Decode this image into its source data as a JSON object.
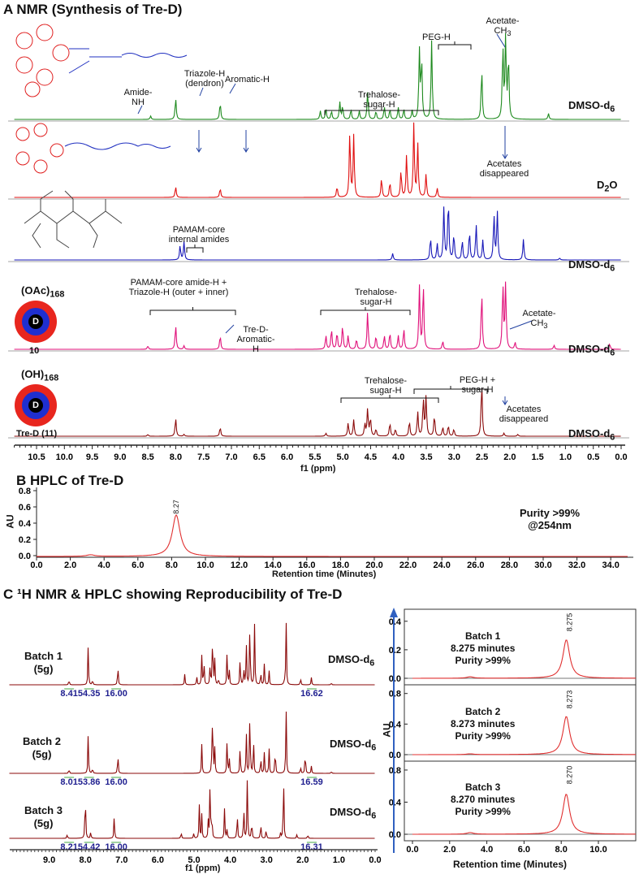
{
  "panel_a": {
    "title": "A  NMR (Synthesis of Tre-D)",
    "xlabel": "f1 (ppm)",
    "labels": {
      "amide_nh": "Amide-NH",
      "triazole": "Triazole-H (dendron)",
      "aromatic": "Aromatic-H",
      "treh1": "Trehalose-sugar-H",
      "peg": "PEG-H",
      "acetate1": "Acetate-CH3",
      "acet_dis1": "Acetates disappeared",
      "pamam_int": "PAMAM-core internal amides",
      "pamam_amide": "PAMAM-core amide-H + Triazole-H (outer + inner)",
      "tred_arom": "Tre-D-Aromatic-H",
      "treh2": "Trehalose-sugar-H",
      "acetate2": "Acetate-CH3",
      "treh3": "Trehalose-sugar-H",
      "peg_sugar": "PEG-H + sugar-H",
      "acet_dis2": "Acetates disappeared",
      "oac": "(OAc)168",
      "oh": "(OH)168",
      "cmp10": "10",
      "cmp11": "Tre-D (11)",
      "dcore": "D"
    },
    "solvents": [
      "DMSO-d6",
      "D2O",
      "DMSO-d6",
      "DMSO-d6",
      "DMSO-d6"
    ]
  },
  "panel_b": {
    "title": "B HPLC of Tre-D",
    "ylabel": "AU",
    "xlabel": "Retention time (Minutes)",
    "peak_label": "8.27",
    "purity": "Purity >99%",
    "wavelength": "@254nm"
  },
  "panel_c": {
    "title": "C ¹H NMR & HPLC showing Reproducibility of Tre-D",
    "nmr_xlabel": "f1 (ppm)",
    "hplc_xlabel": "Retention time (Minutes)",
    "hplc_ylabel": "AU",
    "batches": [
      {
        "name": "Batch 1",
        "mass": "(5g)",
        "solvent": "DMSO-d6",
        "integrals": [
          "8.41",
          "54.35",
          "16.00",
          "16.62"
        ],
        "time": "8.275 minutes",
        "purity": "Purity >99%",
        "peak_label": "8.275"
      },
      {
        "name": "Batch 2",
        "mass": "(5g)",
        "solvent": "DMSO-d6",
        "integrals": [
          "8.01",
          "53.86",
          "16.00",
          "16.59"
        ],
        "time": "8.273 minutes",
        "purity": "Purity >99%",
        "peak_label": "8.273"
      },
      {
        "name": "Batch 3",
        "mass": "(5g)",
        "solvent": "DMSO-d6",
        "integrals": [
          "8.21",
          "54.42",
          "16.00",
          "16.31"
        ],
        "time": "8.270 minutes",
        "purity": "Purity >99%",
        "peak_label": "8.270"
      }
    ]
  },
  "colors": {
    "green": "#1e8a1e",
    "red": "#e01010",
    "blue": "#1818b8",
    "pink": "#e0107a",
    "brown": "#8b0a0a",
    "hplc": "#e03030",
    "accent_blue": "#3060c0"
  },
  "chart_data": [
    {
      "type": "line",
      "name": "panel-a-nmr",
      "xlim": [
        10.9,
        0.0
      ],
      "xticks": [
        10.5,
        10.0,
        9.5,
        9.0,
        8.5,
        8.0,
        7.5,
        7.0,
        6.5,
        6.0,
        5.5,
        5.0,
        4.5,
        4.0,
        3.5,
        3.0,
        2.5,
        2.0,
        1.5,
        1.0,
        0.5,
        0.0
      ],
      "xlabel": "f1 (ppm)",
      "series": [
        {
          "solvent": "DMSO-d6",
          "color": "green",
          "peaks": [
            [
              8.45,
              0.04
            ],
            [
              8.0,
              0.25
            ],
            [
              7.2,
              0.2
            ],
            [
              5.4,
              0.1
            ],
            [
              5.3,
              0.12
            ],
            [
              5.2,
              0.1
            ],
            [
              5.05,
              0.2
            ],
            [
              5.0,
              0.15
            ],
            [
              4.85,
              0.12
            ],
            [
              4.7,
              0.1
            ],
            [
              4.55,
              0.33
            ],
            [
              4.4,
              0.1
            ],
            [
              4.25,
              0.15
            ],
            [
              4.15,
              0.12
            ],
            [
              4.0,
              0.14
            ],
            [
              3.9,
              0.12
            ],
            [
              3.75,
              0.1
            ],
            [
              3.62,
              0.8
            ],
            [
              3.58,
              0.7
            ],
            [
              3.4,
              0.92
            ],
            [
              2.5,
              0.6
            ],
            [
              2.12,
              0.85
            ],
            [
              2.07,
              0.95
            ],
            [
              2.02,
              0.75
            ],
            [
              1.3,
              0.07
            ]
          ]
        },
        {
          "solvent": "D2O",
          "color": "red",
          "peaks": [
            [
              8.0,
              0.14
            ],
            [
              7.2,
              0.12
            ],
            [
              5.1,
              0.14
            ],
            [
              4.87,
              0.85
            ],
            [
              4.8,
              0.8
            ],
            [
              4.3,
              0.25
            ],
            [
              4.15,
              0.2
            ],
            [
              3.95,
              0.35
            ],
            [
              3.85,
              0.55
            ],
            [
              3.72,
              0.95
            ],
            [
              3.65,
              0.7
            ],
            [
              3.5,
              0.3
            ],
            [
              3.3,
              0.12
            ]
          ]
        },
        {
          "solvent": "DMSO-d6",
          "color": "blue",
          "peaks": [
            [
              7.92,
              0.22
            ],
            [
              7.85,
              0.28
            ],
            [
              4.1,
              0.1
            ],
            [
              3.42,
              0.35
            ],
            [
              3.3,
              0.25
            ],
            [
              3.18,
              0.8
            ],
            [
              3.1,
              0.95
            ],
            [
              3.0,
              0.4
            ],
            [
              2.85,
              0.3
            ],
            [
              2.72,
              0.45
            ],
            [
              2.6,
              0.55
            ],
            [
              2.48,
              0.3
            ],
            [
              2.28,
              0.7
            ],
            [
              2.22,
              0.75
            ],
            [
              1.75,
              0.32
            ],
            [
              1.1,
              0.03
            ]
          ]
        },
        {
          "solvent": "DMSO-d6",
          "color": "pink",
          "peaks": [
            [
              8.5,
              0.05
            ],
            [
              8.0,
              0.35
            ],
            [
              7.85,
              0.05
            ],
            [
              7.2,
              0.2
            ],
            [
              5.3,
              0.2
            ],
            [
              5.2,
              0.3
            ],
            [
              5.1,
              0.25
            ],
            [
              5.0,
              0.35
            ],
            [
              4.9,
              0.2
            ],
            [
              4.75,
              0.15
            ],
            [
              4.55,
              0.55
            ],
            [
              4.4,
              0.2
            ],
            [
              4.25,
              0.2
            ],
            [
              4.15,
              0.25
            ],
            [
              4.0,
              0.2
            ],
            [
              3.9,
              0.3
            ],
            [
              3.62,
              0.92
            ],
            [
              3.55,
              0.95
            ],
            [
              3.2,
              0.12
            ],
            [
              2.5,
              0.85
            ],
            [
              2.12,
              0.95
            ],
            [
              2.07,
              0.95
            ],
            [
              1.9,
              0.1
            ],
            [
              1.2,
              0.06
            ],
            [
              0.2,
              0.08
            ]
          ]
        },
        {
          "solvent": "DMSO-d6",
          "color": "brown",
          "peaks": [
            [
              8.5,
              0.03
            ],
            [
              8.0,
              0.3
            ],
            [
              7.85,
              0.03
            ],
            [
              7.2,
              0.15
            ],
            [
              5.3,
              0.05
            ],
            [
              4.9,
              0.22
            ],
            [
              4.8,
              0.27
            ],
            [
              4.6,
              0.2
            ],
            [
              4.55,
              0.45
            ],
            [
              4.5,
              0.3
            ],
            [
              4.4,
              0.12
            ],
            [
              4.15,
              0.22
            ],
            [
              4.05,
              0.12
            ],
            [
              3.8,
              0.25
            ],
            [
              3.65,
              0.4
            ],
            [
              3.55,
              0.62
            ],
            [
              3.5,
              0.65
            ],
            [
              3.35,
              0.35
            ],
            [
              3.2,
              0.15
            ],
            [
              3.1,
              0.18
            ],
            [
              3.0,
              0.12
            ],
            [
              2.5,
              0.92
            ],
            [
              2.1,
              0.05
            ],
            [
              1.85,
              0.03
            ]
          ]
        }
      ]
    },
    {
      "type": "line",
      "name": "panel-b-hplc",
      "xlim": [
        0,
        35
      ],
      "ylim": [
        0,
        0.8
      ],
      "xticks": [
        0,
        2,
        4,
        6,
        8,
        10,
        12,
        14,
        16,
        18,
        20,
        22,
        24,
        26,
        28,
        30,
        32,
        34
      ],
      "yticks": [
        0.0,
        0.2,
        0.4,
        0.6,
        0.8
      ],
      "xlabel": "Retention time (Minutes)",
      "ylabel": "AU",
      "peaks": [
        [
          3.2,
          0.02
        ],
        [
          8.27,
          0.51
        ]
      ]
    },
    {
      "type": "line",
      "name": "panel-c-nmr",
      "xlim": [
        10.1,
        0.0
      ],
      "xticks": [
        9.0,
        8.0,
        7.0,
        6.0,
        5.0,
        4.0,
        3.0,
        2.0,
        1.0,
        0.0
      ],
      "xlabel": "f1 (ppm)",
      "series": [
        {
          "batch": "Batch 1",
          "peaks": [
            [
              8.45,
              0.08
            ],
            [
              7.92,
              0.55
            ],
            [
              7.8,
              0.08
            ],
            [
              7.1,
              0.3
            ],
            [
              5.25,
              0.15
            ],
            [
              4.92,
              0.12
            ],
            [
              4.78,
              0.4
            ],
            [
              4.72,
              0.35
            ],
            [
              4.55,
              0.3
            ],
            [
              4.48,
              0.85
            ],
            [
              4.42,
              0.35
            ],
            [
              4.32,
              0.1
            ],
            [
              4.08,
              0.5
            ],
            [
              4.02,
              0.2
            ],
            [
              3.72,
              0.4
            ],
            [
              3.62,
              0.25
            ],
            [
              3.55,
              0.6
            ],
            [
              3.45,
              0.95
            ],
            [
              3.32,
              0.85
            ],
            [
              3.15,
              0.2
            ],
            [
              3.05,
              0.3
            ],
            [
              2.92,
              0.2
            ],
            [
              2.5,
              0.05
            ],
            [
              2.45,
              0.95
            ],
            [
              2.05,
              0.1
            ],
            [
              1.75,
              0.1
            ],
            [
              1.2,
              0.03
            ]
          ]
        },
        {
          "batch": "Batch 2",
          "peaks": [
            [
              8.45,
              0.07
            ],
            [
              7.92,
              0.55
            ],
            [
              7.8,
              0.08
            ],
            [
              7.1,
              0.3
            ],
            [
              4.78,
              0.4
            ],
            [
              4.5,
              0.25
            ],
            [
              4.48,
              0.9
            ],
            [
              4.42,
              0.35
            ],
            [
              4.08,
              0.5
            ],
            [
              4.02,
              0.2
            ],
            [
              3.72,
              0.4
            ],
            [
              3.55,
              0.6
            ],
            [
              3.45,
              0.95
            ],
            [
              3.35,
              0.5
            ],
            [
              3.15,
              0.25
            ],
            [
              3.05,
              0.3
            ],
            [
              2.92,
              0.35
            ],
            [
              2.75,
              0.4
            ],
            [
              2.45,
              0.95
            ],
            [
              2.05,
              0.1
            ],
            [
              1.92,
              0.35
            ],
            [
              1.75,
              0.1
            ],
            [
              1.2,
              0.03
            ]
          ]
        },
        {
          "batch": "Batch 3",
          "peaks": [
            [
              8.5,
              0.06
            ],
            [
              8.0,
              0.8
            ],
            [
              7.85,
              0.1
            ],
            [
              7.2,
              0.35
            ],
            [
              5.35,
              0.1
            ],
            [
              5.0,
              0.08
            ],
            [
              4.85,
              0.5
            ],
            [
              4.78,
              0.35
            ],
            [
              4.6,
              0.25
            ],
            [
              4.55,
              0.95
            ],
            [
              4.5,
              0.35
            ],
            [
              4.15,
              0.45
            ],
            [
              4.08,
              0.15
            ],
            [
              3.8,
              0.4
            ],
            [
              3.62,
              0.5
            ],
            [
              3.52,
              0.95
            ],
            [
              3.4,
              0.3
            ],
            [
              3.15,
              0.25
            ],
            [
              3.0,
              0.15
            ],
            [
              2.6,
              0.08
            ],
            [
              2.52,
              1.0
            ],
            [
              2.15,
              0.06
            ],
            [
              1.85,
              0.06
            ]
          ]
        }
      ]
    },
    {
      "type": "line",
      "name": "panel-c-hplc",
      "xlim": [
        0,
        11.5
      ],
      "xticks": [
        0,
        2,
        4,
        6,
        8,
        10
      ],
      "xlabel": "Retention time (Minutes)",
      "ylabel": "AU",
      "series": [
        {
          "batch": "Batch 1",
          "ylim": [
            0,
            0.45
          ],
          "yticks": [
            0.0,
            0.2,
            0.4
          ],
          "peaks": [
            [
              3.1,
              0.01
            ],
            [
              8.275,
              0.27
            ]
          ]
        },
        {
          "batch": "Batch 2",
          "ylim": [
            0,
            0.85
          ],
          "yticks": [
            0.0,
            0.4,
            0.8
          ],
          "peaks": [
            [
              3.1,
              0.01
            ],
            [
              8.273,
              0.5
            ]
          ]
        },
        {
          "batch": "Batch 3",
          "ylim": [
            0,
            0.85
          ],
          "yticks": [
            0.0,
            0.4,
            0.8
          ],
          "peaks": [
            [
              3.1,
              0.02
            ],
            [
              8.27,
              0.5
            ]
          ]
        }
      ]
    }
  ]
}
